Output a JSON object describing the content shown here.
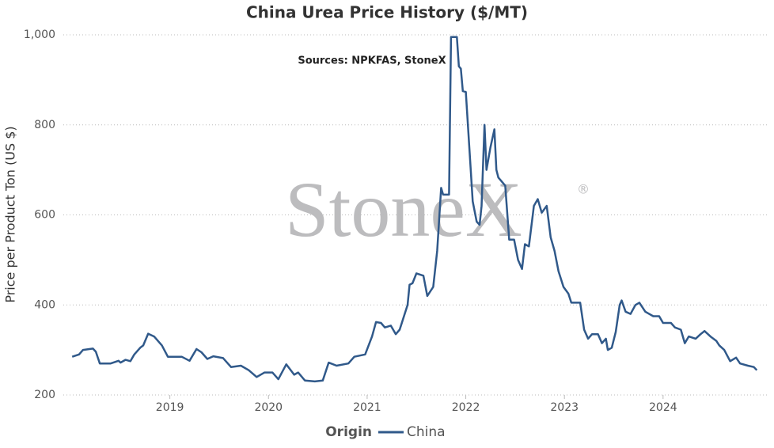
{
  "chart_data": {
    "type": "line",
    "title": "China Urea Price History ($/MT)",
    "subtitle": "Sources: NPKFAS, StoneX",
    "watermark": "StoneX",
    "watermark_mark": "®",
    "y_label": "Price per Product Ton (US $)",
    "legend_title": "Origin",
    "grid": true,
    "xlim": [
      2017.92,
      2024.98
    ],
    "xticks": [
      {
        "value": 2019,
        "label": "2019"
      },
      {
        "value": 2020,
        "label": "2020"
      },
      {
        "value": 2021,
        "label": "2021"
      },
      {
        "value": 2022,
        "label": "2022"
      },
      {
        "value": 2023,
        "label": "2023"
      },
      {
        "value": 2024,
        "label": "2024"
      }
    ],
    "ylim": [
      200,
      1000
    ],
    "yticks": [
      200,
      400,
      600,
      800,
      {
        "value": 1000,
        "label": "1,000"
      }
    ],
    "x": [
      2018.01,
      2018.08,
      2018.12,
      2018.22,
      2018.25,
      2018.29,
      2018.4,
      2018.48,
      2018.5,
      2018.55,
      2018.6,
      2018.64,
      2018.7,
      2018.73,
      2018.78,
      2018.84,
      2018.92,
      2018.98,
      2019.12,
      2019.2,
      2019.27,
      2019.32,
      2019.38,
      2019.44,
      2019.54,
      2019.62,
      2019.72,
      2019.8,
      2019.88,
      2019.96,
      2020.04,
      2020.1,
      2020.18,
      2020.26,
      2020.3,
      2020.37,
      2020.47,
      2020.55,
      2020.61,
      2020.69,
      2020.81,
      2020.87,
      2020.98,
      2021.05,
      2021.09,
      2021.14,
      2021.18,
      2021.24,
      2021.29,
      2021.33,
      2021.41,
      2021.43,
      2021.46,
      2021.5,
      2021.57,
      2021.61,
      2021.67,
      2021.71,
      2021.75,
      2021.77,
      2021.83,
      2021.85,
      2021.91,
      2021.93,
      2021.95,
      2021.97,
      2022.0,
      2022.05,
      2022.07,
      2022.11,
      2022.14,
      2022.16,
      2022.19,
      2022.21,
      2022.25,
      2022.29,
      2022.31,
      2022.33,
      2022.4,
      2022.44,
      2022.49,
      2022.53,
      2022.57,
      2022.6,
      2022.64,
      2022.69,
      2022.73,
      2022.77,
      2022.82,
      2022.86,
      2022.9,
      2022.94,
      2022.99,
      2023.04,
      2023.07,
      2023.16,
      2023.2,
      2023.24,
      2023.28,
      2023.34,
      2023.38,
      2023.42,
      2023.44,
      2023.48,
      2023.52,
      2023.56,
      2023.58,
      2023.62,
      2023.67,
      2023.72,
      2023.76,
      2023.82,
      2023.9,
      2023.96,
      2024.0,
      2024.08,
      2024.12,
      2024.18,
      2024.22,
      2024.26,
      2024.33,
      2024.38,
      2024.42,
      2024.48,
      2024.54,
      2024.57,
      2024.62,
      2024.68,
      2024.74,
      2024.78,
      2024.86,
      2024.92,
      2024.95
    ],
    "series": [
      {
        "name": "China",
        "color": "#30598a",
        "values": [
          285,
          290,
          300,
          303,
          296,
          270,
          270,
          276,
          272,
          278,
          275,
          290,
          305,
          310,
          336,
          330,
          310,
          285,
          285,
          276,
          302,
          295,
          280,
          286,
          282,
          262,
          265,
          255,
          240,
          250,
          250,
          235,
          268,
          245,
          250,
          232,
          230,
          232,
          272,
          265,
          270,
          285,
          290,
          330,
          362,
          360,
          350,
          354,
          335,
          345,
          400,
          445,
          448,
          470,
          465,
          420,
          440,
          520,
          660,
          645,
          645,
          995,
          995,
          930,
          925,
          875,
          873,
          700,
          630,
          585,
          578,
          620,
          800,
          700,
          750,
          790,
          700,
          683,
          665,
          545,
          545,
          500,
          480,
          535,
          530,
          620,
          635,
          605,
          620,
          550,
          520,
          475,
          440,
          425,
          405,
          405,
          345,
          325,
          335,
          335,
          315,
          325,
          300,
          305,
          340,
          400,
          410,
          385,
          380,
          400,
          405,
          385,
          375,
          375,
          360,
          360,
          350,
          345,
          315,
          330,
          325,
          335,
          342,
          330,
          320,
          310,
          300,
          275,
          283,
          270,
          265,
          262,
          255
        ]
      }
    ]
  }
}
